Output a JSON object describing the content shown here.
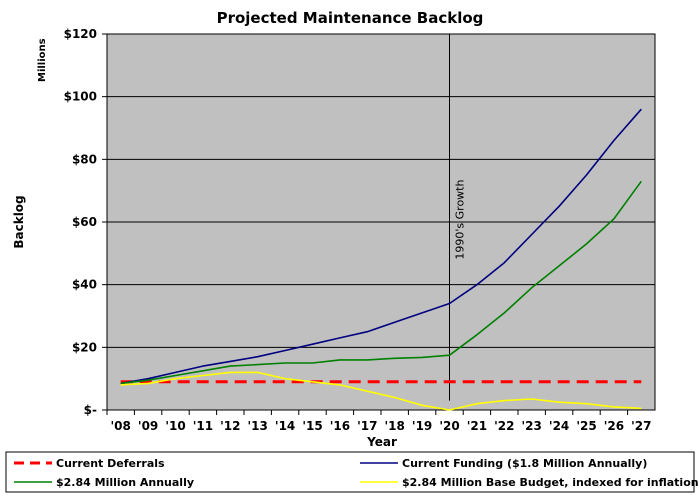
{
  "chart_data": {
    "type": "line",
    "title": "Projected Maintenance Backlog",
    "xlabel": "Year",
    "ylabel": "Backlog",
    "y_unit": "Millions",
    "ylim": [
      0,
      120
    ],
    "yticks": [
      {
        "value": 0,
        "label": "$-"
      },
      {
        "value": 20,
        "label": "$20"
      },
      {
        "value": 40,
        "label": "$40"
      },
      {
        "value": 60,
        "label": "$60"
      },
      {
        "value": 80,
        "label": "$80"
      },
      {
        "value": 100,
        "label": "$100"
      },
      {
        "value": 120,
        "label": "$120"
      }
    ],
    "categories": [
      "'08",
      "'09",
      "'10",
      "'11",
      "'12",
      "'13",
      "'14",
      "'15",
      "'16",
      "'17",
      "'18",
      "'19",
      "'20",
      "'21",
      "'22",
      "'23",
      "'24",
      "'25",
      "'26",
      "'27"
    ],
    "grid": "horizontal",
    "plot_background": "#c0c0c0",
    "annotation": {
      "text": "1990's Growth",
      "x": "'20"
    },
    "legend_position": "bottom",
    "series": [
      {
        "name": "Current Deferrals",
        "color": "#ff0000",
        "style": "dashed",
        "values": [
          9,
          9,
          9,
          9,
          9,
          9,
          9,
          9,
          9,
          9,
          9,
          9,
          9,
          9,
          9,
          9,
          9,
          9,
          9,
          9
        ]
      },
      {
        "name": "Current Funding ($1.8 Million Annually)",
        "color": "#000080",
        "style": "solid",
        "values": [
          8.5,
          10,
          12,
          14,
          15.5,
          17,
          19,
          21,
          23,
          25,
          28,
          31,
          34,
          40,
          47,
          56,
          65,
          75,
          86,
          96
        ]
      },
      {
        "name": "$2.84 Million Annually",
        "color": "#008000",
        "style": "solid",
        "values": [
          8.5,
          9.5,
          11,
          12.5,
          14,
          14.5,
          15,
          15,
          16,
          16,
          16.5,
          16.8,
          17.5,
          24,
          31,
          39,
          46,
          53,
          61,
          73
        ]
      },
      {
        "name": "$2.84 Million Base Budget, indexed for inflation",
        "color": "#ffff00",
        "style": "solid",
        "values": [
          8,
          8.5,
          10,
          11,
          12,
          12,
          10,
          9,
          8,
          6,
          4,
          1.5,
          0,
          2,
          3,
          3.5,
          2.5,
          2,
          1,
          0.5
        ]
      }
    ]
  }
}
